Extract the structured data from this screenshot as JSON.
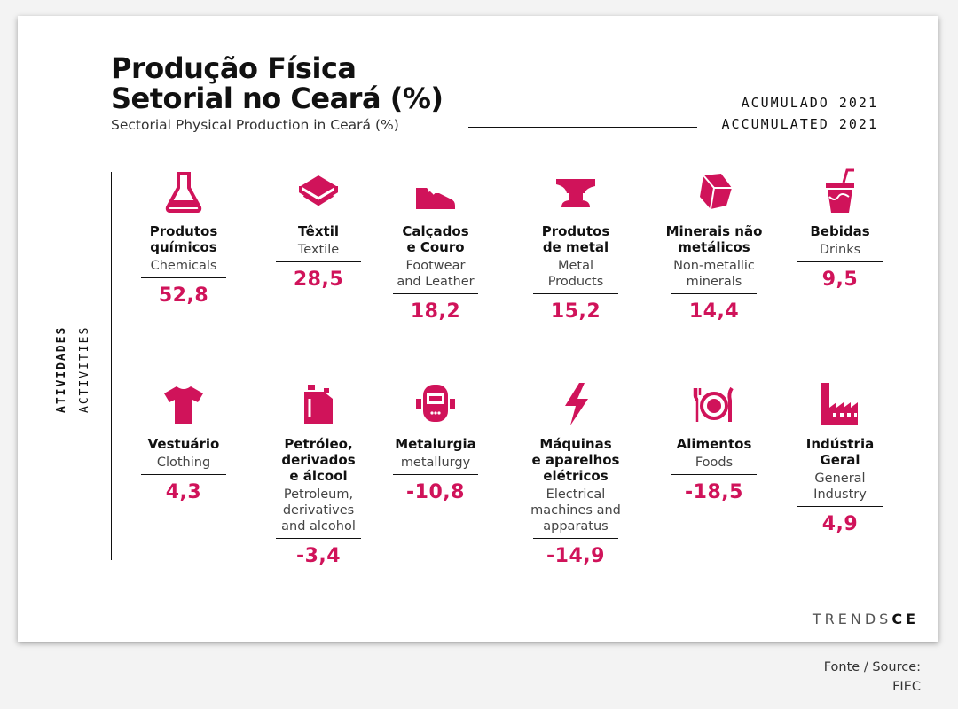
{
  "title": {
    "line1": "Produção Física",
    "line2": "Setorial no Ceará (%)",
    "subtitle": "Sectorial Physical Production in Ceará (%)"
  },
  "period": {
    "pt": "ACUMULADO 2021",
    "en": "ACCUMULATED 2021"
  },
  "side_label": {
    "pt": "ATIVIDADES",
    "en": "ACTIVITIES"
  },
  "accent_color": "#d0135a",
  "items": [
    {
      "icon": "flask-icon",
      "pt": "Produtos\nquímicos",
      "en": "Chemicals",
      "value": "52,8"
    },
    {
      "icon": "textile-roll-icon",
      "pt": "Têxtil",
      "en": "Textile",
      "value": "28,5"
    },
    {
      "icon": "sneaker-icon",
      "pt": "Calçados\ne Couro",
      "en": "Footwear\nand Leather",
      "value": "18,2"
    },
    {
      "icon": "anvil-icon",
      "pt": "Produtos\nde metal",
      "en": "Metal\nProducts",
      "value": "15,2"
    },
    {
      "icon": "gem-rock-icon",
      "pt": "Minerais não\nmetálicos",
      "en": "Non-metallic\nminerals",
      "value": "14,4"
    },
    {
      "icon": "drink-cup-icon",
      "pt": "Bebidas",
      "en": "Drinks",
      "value": "9,5"
    },
    {
      "icon": "tshirt-icon",
      "pt": "Vestuário",
      "en": "Clothing",
      "value": "4,3"
    },
    {
      "icon": "jerrycan-icon",
      "pt": "Petróleo,\nderivados\ne álcool",
      "en": "Petroleum,\nderivatives\nand alcohol",
      "value": "-3,4"
    },
    {
      "icon": "welding-mask-icon",
      "pt": "Metalurgia",
      "en": "metallurgy",
      "value": "-10,8"
    },
    {
      "icon": "lightning-icon",
      "pt": "Máquinas\ne aparelhos\nelétricos",
      "en": "Electrical\nmachines and\napparatus",
      "value": "-14,9"
    },
    {
      "icon": "plate-cutlery-icon",
      "pt": "Alimentos",
      "en": "Foods",
      "value": "-18,5"
    },
    {
      "icon": "factory-icon",
      "pt": "Indústria\nGeral",
      "en": "General\nIndustry",
      "value": "4,9"
    }
  ],
  "chart_data": {
    "type": "table",
    "title": "Produção Física Setorial no Ceará (%)",
    "subtitle": "Sectorial Physical Production in Ceará (%)",
    "categories": [
      "Produtos químicos",
      "Têxtil",
      "Calçados e Couro",
      "Produtos de metal",
      "Minerais não metálicos",
      "Bebidas",
      "Vestuário",
      "Petróleo, derivados e álcool",
      "Metalurgia",
      "Máquinas e aparelhos elétricos",
      "Alimentos",
      "Indústria Geral"
    ],
    "series": [
      {
        "name": "ACUMULADO 2021",
        "values": [
          52.8,
          28.5,
          18.2,
          15.2,
          14.4,
          9.5,
          4.3,
          -3.4,
          -10.8,
          -14.9,
          -18.5,
          4.9
        ]
      }
    ]
  },
  "brand": {
    "light": "TRENDS",
    "bold": "CE"
  },
  "source": "Fonte / Source:\nFIEC"
}
